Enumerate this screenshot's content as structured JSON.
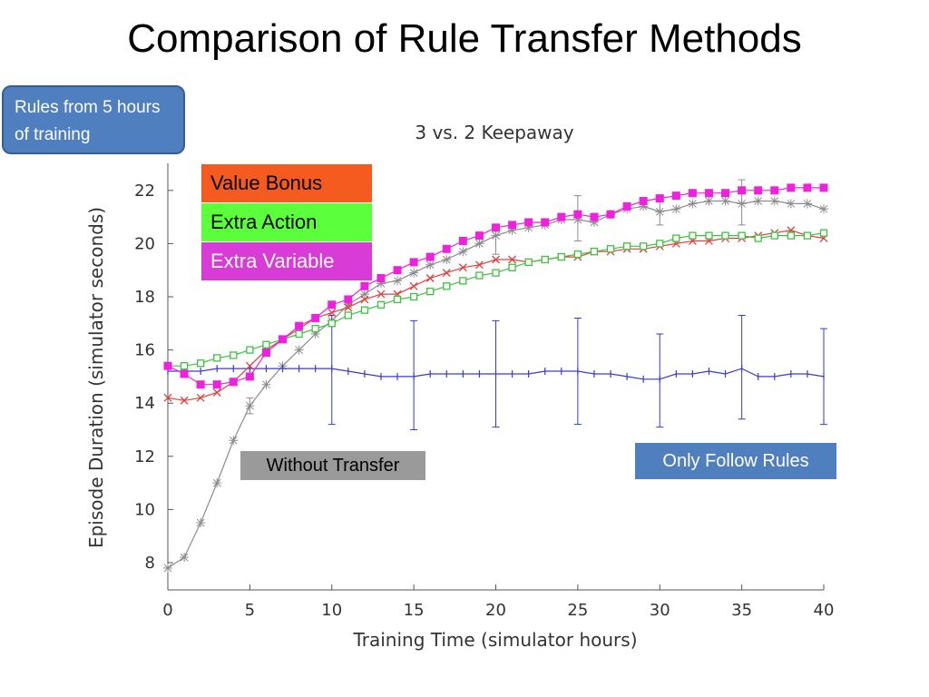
{
  "slide": {
    "title": "Comparison of Rule Transfer Methods",
    "callout": "Rules from 5 hours of training"
  },
  "annotations": {
    "without_transfer": "Without Transfer",
    "only_follow_rules": "Only Follow Rules"
  },
  "colors": {
    "value_bonus": "#f55a1e",
    "extra_action": "#5bff3b",
    "extra_variable": "#d93bd6",
    "without_transfer": "#9a9a9a",
    "only_follow_rules": "#4f7fbf"
  },
  "chart_data": {
    "type": "line",
    "title": "3 vs. 2 Keepaway",
    "xlabel": "Training Time (simulator hours)",
    "ylabel": "Episode Duration (simulator seconds)",
    "xlim": [
      0,
      40
    ],
    "ylim": [
      7.5,
      23
    ],
    "xticks": [
      0,
      5,
      10,
      15,
      20,
      25,
      30,
      35,
      40
    ],
    "yticks": [
      8,
      10,
      12,
      14,
      16,
      18,
      20,
      22
    ],
    "grid": false,
    "legend": {
      "placement": "top-left",
      "entries": [
        "Value Bonus",
        "Extra Action",
        "Extra Variable"
      ]
    },
    "series": [
      {
        "name": "Value Bonus",
        "color": "#e04040",
        "marker": "x",
        "x": [
          0,
          1,
          2,
          3,
          4,
          5,
          6,
          7,
          8,
          9,
          10,
          11,
          12,
          13,
          14,
          15,
          16,
          17,
          18,
          19,
          20,
          21,
          22,
          23,
          24,
          25,
          26,
          27,
          28,
          29,
          30,
          31,
          32,
          33,
          34,
          35,
          36,
          37,
          38,
          39,
          40
        ],
        "y": [
          14.2,
          14.1,
          14.2,
          14.4,
          14.8,
          15.4,
          16.0,
          16.4,
          16.8,
          17.2,
          17.4,
          17.6,
          17.9,
          18.1,
          18.1,
          18.4,
          18.7,
          18.9,
          19.1,
          19.2,
          19.4,
          19.4,
          19.3,
          19.4,
          19.5,
          19.5,
          19.7,
          19.7,
          19.8,
          19.8,
          19.9,
          20.0,
          20.1,
          20.1,
          20.2,
          20.2,
          20.3,
          20.4,
          20.5,
          20.3,
          20.2
        ]
      },
      {
        "name": "Extra Action",
        "color": "#40c040",
        "marker": "square-open",
        "x": [
          0,
          1,
          2,
          3,
          4,
          5,
          6,
          7,
          8,
          9,
          10,
          11,
          12,
          13,
          14,
          15,
          16,
          17,
          18,
          19,
          20,
          21,
          22,
          23,
          24,
          25,
          26,
          27,
          28,
          29,
          30,
          31,
          32,
          33,
          34,
          35,
          36,
          37,
          38,
          39,
          40
        ],
        "y": [
          15.4,
          15.4,
          15.5,
          15.7,
          15.8,
          16.0,
          16.2,
          16.4,
          16.6,
          16.8,
          17.0,
          17.3,
          17.5,
          17.7,
          17.9,
          18.0,
          18.2,
          18.4,
          18.6,
          18.8,
          18.9,
          19.1,
          19.3,
          19.4,
          19.5,
          19.6,
          19.7,
          19.8,
          19.9,
          19.9,
          20.0,
          20.2,
          20.3,
          20.3,
          20.3,
          20.3,
          20.2,
          20.3,
          20.3,
          20.3,
          20.4
        ]
      },
      {
        "name": "Extra Variable",
        "color": "#ee22dd",
        "marker": "square-filled",
        "x": [
          0,
          1,
          2,
          3,
          4,
          5,
          6,
          7,
          8,
          9,
          10,
          11,
          12,
          13,
          14,
          15,
          16,
          17,
          18,
          19,
          20,
          21,
          22,
          23,
          24,
          25,
          26,
          27,
          28,
          29,
          30,
          31,
          32,
          33,
          34,
          35,
          36,
          37,
          38,
          39,
          40
        ],
        "y": [
          15.4,
          15.1,
          14.7,
          14.7,
          14.8,
          15.0,
          15.9,
          16.4,
          16.9,
          17.2,
          17.7,
          17.9,
          18.4,
          18.7,
          19.0,
          19.3,
          19.5,
          19.8,
          20.1,
          20.3,
          20.6,
          20.7,
          20.8,
          20.8,
          21.0,
          21.1,
          21.0,
          21.1,
          21.4,
          21.6,
          21.7,
          21.8,
          21.9,
          21.9,
          21.9,
          22.0,
          22.0,
          22.0,
          22.1,
          22.1,
          22.1
        ]
      },
      {
        "name": "Without Transfer",
        "color": "#8c8c8c",
        "marker": "asterisk",
        "x": [
          0,
          1,
          2,
          3,
          4,
          5,
          6,
          7,
          8,
          9,
          10,
          11,
          12,
          13,
          14,
          15,
          16,
          17,
          18,
          19,
          20,
          21,
          22,
          23,
          24,
          25,
          26,
          27,
          28,
          29,
          30,
          31,
          32,
          33,
          34,
          35,
          36,
          37,
          38,
          39,
          40
        ],
        "y": [
          7.8,
          8.2,
          9.5,
          11.0,
          12.6,
          13.9,
          14.7,
          15.4,
          16.0,
          16.6,
          17.1,
          17.7,
          18.1,
          18.5,
          18.6,
          18.9,
          19.2,
          19.4,
          19.7,
          20.0,
          20.3,
          20.5,
          20.6,
          20.7,
          20.9,
          20.9,
          20.8,
          21.1,
          21.3,
          21.4,
          21.2,
          21.3,
          21.5,
          21.6,
          21.6,
          21.5,
          21.6,
          21.6,
          21.5,
          21.5,
          21.3
        ],
        "error_bars": [
          {
            "x": 5,
            "low": 13.6,
            "high": 14.2
          },
          {
            "x": 20,
            "low": 19.6,
            "high": 20.6
          },
          {
            "x": 25,
            "low": 20.1,
            "high": 21.8
          },
          {
            "x": 30,
            "low": 20.7,
            "high": 21.6
          },
          {
            "x": 35,
            "low": 20.7,
            "high": 22.4
          }
        ]
      },
      {
        "name": "Only Follow Rules",
        "color": "#3a3ad0",
        "marker": "plus",
        "x": [
          0,
          1,
          2,
          3,
          4,
          5,
          6,
          7,
          8,
          9,
          10,
          11,
          12,
          13,
          14,
          15,
          16,
          17,
          18,
          19,
          20,
          21,
          22,
          23,
          24,
          25,
          26,
          27,
          28,
          29,
          30,
          31,
          32,
          33,
          34,
          35,
          36,
          37,
          38,
          39,
          40
        ],
        "y": [
          15.2,
          15.2,
          15.2,
          15.3,
          15.3,
          15.3,
          15.3,
          15.3,
          15.3,
          15.3,
          15.3,
          15.2,
          15.1,
          15.0,
          15.0,
          15.0,
          15.1,
          15.1,
          15.1,
          15.1,
          15.1,
          15.1,
          15.1,
          15.2,
          15.2,
          15.2,
          15.1,
          15.1,
          15.0,
          14.9,
          14.9,
          15.1,
          15.1,
          15.2,
          15.1,
          15.3,
          15.0,
          15.0,
          15.1,
          15.1,
          15.0
        ],
        "error_bars": [
          {
            "x": 10,
            "low": 13.2,
            "high": 17.3
          },
          {
            "x": 15,
            "low": 13.0,
            "high": 17.1
          },
          {
            "x": 20,
            "low": 13.1,
            "high": 17.1
          },
          {
            "x": 25,
            "low": 13.2,
            "high": 17.2
          },
          {
            "x": 30,
            "low": 13.1,
            "high": 16.6
          },
          {
            "x": 35,
            "low": 13.4,
            "high": 17.3
          },
          {
            "x": 40,
            "low": 13.2,
            "high": 16.8
          }
        ]
      }
    ]
  }
}
